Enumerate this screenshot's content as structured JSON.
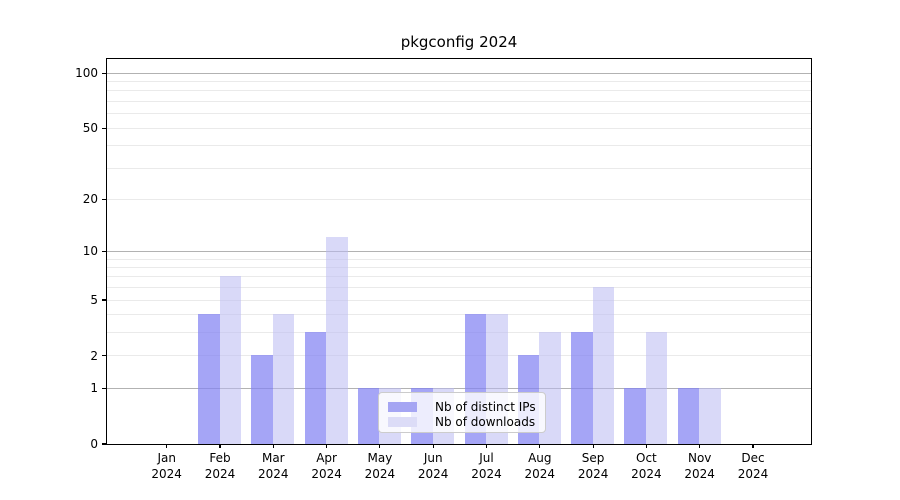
{
  "title": "pkgconfig 2024",
  "colors": {
    "background": "#ffffff",
    "bar_ips": "rgba(130,130,243,0.72)",
    "bar_downloads": "rgba(185,185,243,0.55)",
    "legend_swatch_ips": "#a5a5f3",
    "legend_swatch_downloads": "#dcdcf7",
    "grid_major": "#b2b2b2",
    "grid_minor": "#eaeaea",
    "axis": "#000000",
    "text": "#000000"
  },
  "legend": {
    "items": [
      {
        "label": "Nb of distinct IPs",
        "color_key": "legend_swatch_ips"
      },
      {
        "label": "Nb of downloads",
        "color_key": "legend_swatch_downloads"
      }
    ]
  },
  "chart_data": {
    "type": "bar",
    "title": "pkgconfig 2024",
    "categories": [
      "Jan 2024",
      "Feb 2024",
      "Mar 2024",
      "Apr 2024",
      "May 2024",
      "Jun 2024",
      "Jul 2024",
      "Aug 2024",
      "Sep 2024",
      "Oct 2024",
      "Nov 2024",
      "Dec 2024"
    ],
    "series": [
      {
        "name": "Nb of distinct IPs",
        "values": [
          0,
          4,
          2,
          3,
          1,
          1,
          4,
          2,
          3,
          1,
          1,
          0
        ]
      },
      {
        "name": "Nb of downloads",
        "values": [
          0,
          7,
          4,
          12,
          1,
          1,
          4,
          3,
          6,
          3,
          1,
          0
        ]
      }
    ],
    "xlabel": "",
    "ylabel": "",
    "yscale": "log1p",
    "yticks": [
      0,
      1,
      2,
      5,
      10,
      20,
      50,
      100
    ],
    "minor_gridlines": [
      2,
      3,
      4,
      5,
      6,
      7,
      8,
      9,
      20,
      30,
      40,
      50,
      60,
      70,
      80,
      90
    ],
    "major_gridlines": [
      1,
      10,
      100
    ],
    "ylim": [
      0,
      112
    ],
    "grid": true,
    "legend_position": "lower center"
  }
}
